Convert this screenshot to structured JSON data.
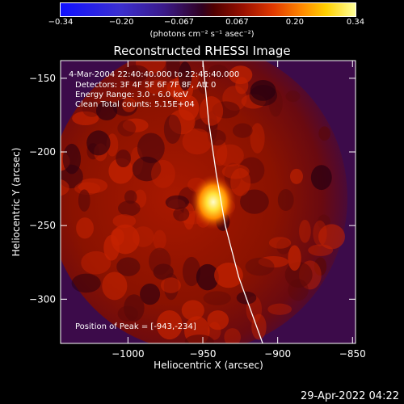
{
  "colorbar": {
    "ticks": [
      "-0.34",
      "-0.20",
      "-0.067",
      "0.067",
      "0.20",
      "0.34"
    ],
    "tick_values": [
      -0.34,
      -0.2,
      -0.067,
      0.067,
      0.2,
      0.34
    ],
    "min": -0.34,
    "max": 0.34,
    "unit": "(photons cm⁻² s⁻¹ asec⁻²)"
  },
  "info": {
    "time": "4-Mar-2004 22:40:40.000 to 22:46:40.000",
    "detectors": "Detectors: 3F 4F 5F 6F 7F 8F, Att 0",
    "energy": "Energy Range: 3.0 - 6.0 keV",
    "clean": "Clean    Total counts: 5.15E+04",
    "peak": "Position of Peak = [-943,-234]"
  },
  "timestamp": "29-Apr-2022 04:22",
  "chart_data": {
    "type": "heatmap",
    "title": "Reconstructed RHESSI Image",
    "xlabel": "Heliocentric X (arcsec)",
    "ylabel": "Heliocentric Y (arcsec)",
    "xlim": [
      -1045,
      -848
    ],
    "ylim": [
      -330,
      -138
    ],
    "xticks": [
      -1000,
      -950,
      -900,
      -850
    ],
    "yticks": [
      -150,
      -200,
      -250,
      -300
    ],
    "xtick_labels": [
      "−1000",
      "−950",
      "−900",
      "−850"
    ],
    "ytick_labels": [
      "−150",
      "−200",
      "−250",
      "−300"
    ],
    "peak": {
      "x": -943,
      "y": -234
    },
    "limb": [
      [
        -950,
        -138
      ],
      [
        -946,
        -180
      ],
      [
        -941,
        -215
      ],
      [
        -935,
        -250
      ],
      [
        -926,
        -285
      ],
      [
        -910,
        -330
      ]
    ],
    "colors": {
      "peak": "#fff8a0",
      "high": "#ff9a00",
      "mid": "#c82000",
      "low": "#7a0500",
      "bg": "#3c0b4a"
    }
  }
}
